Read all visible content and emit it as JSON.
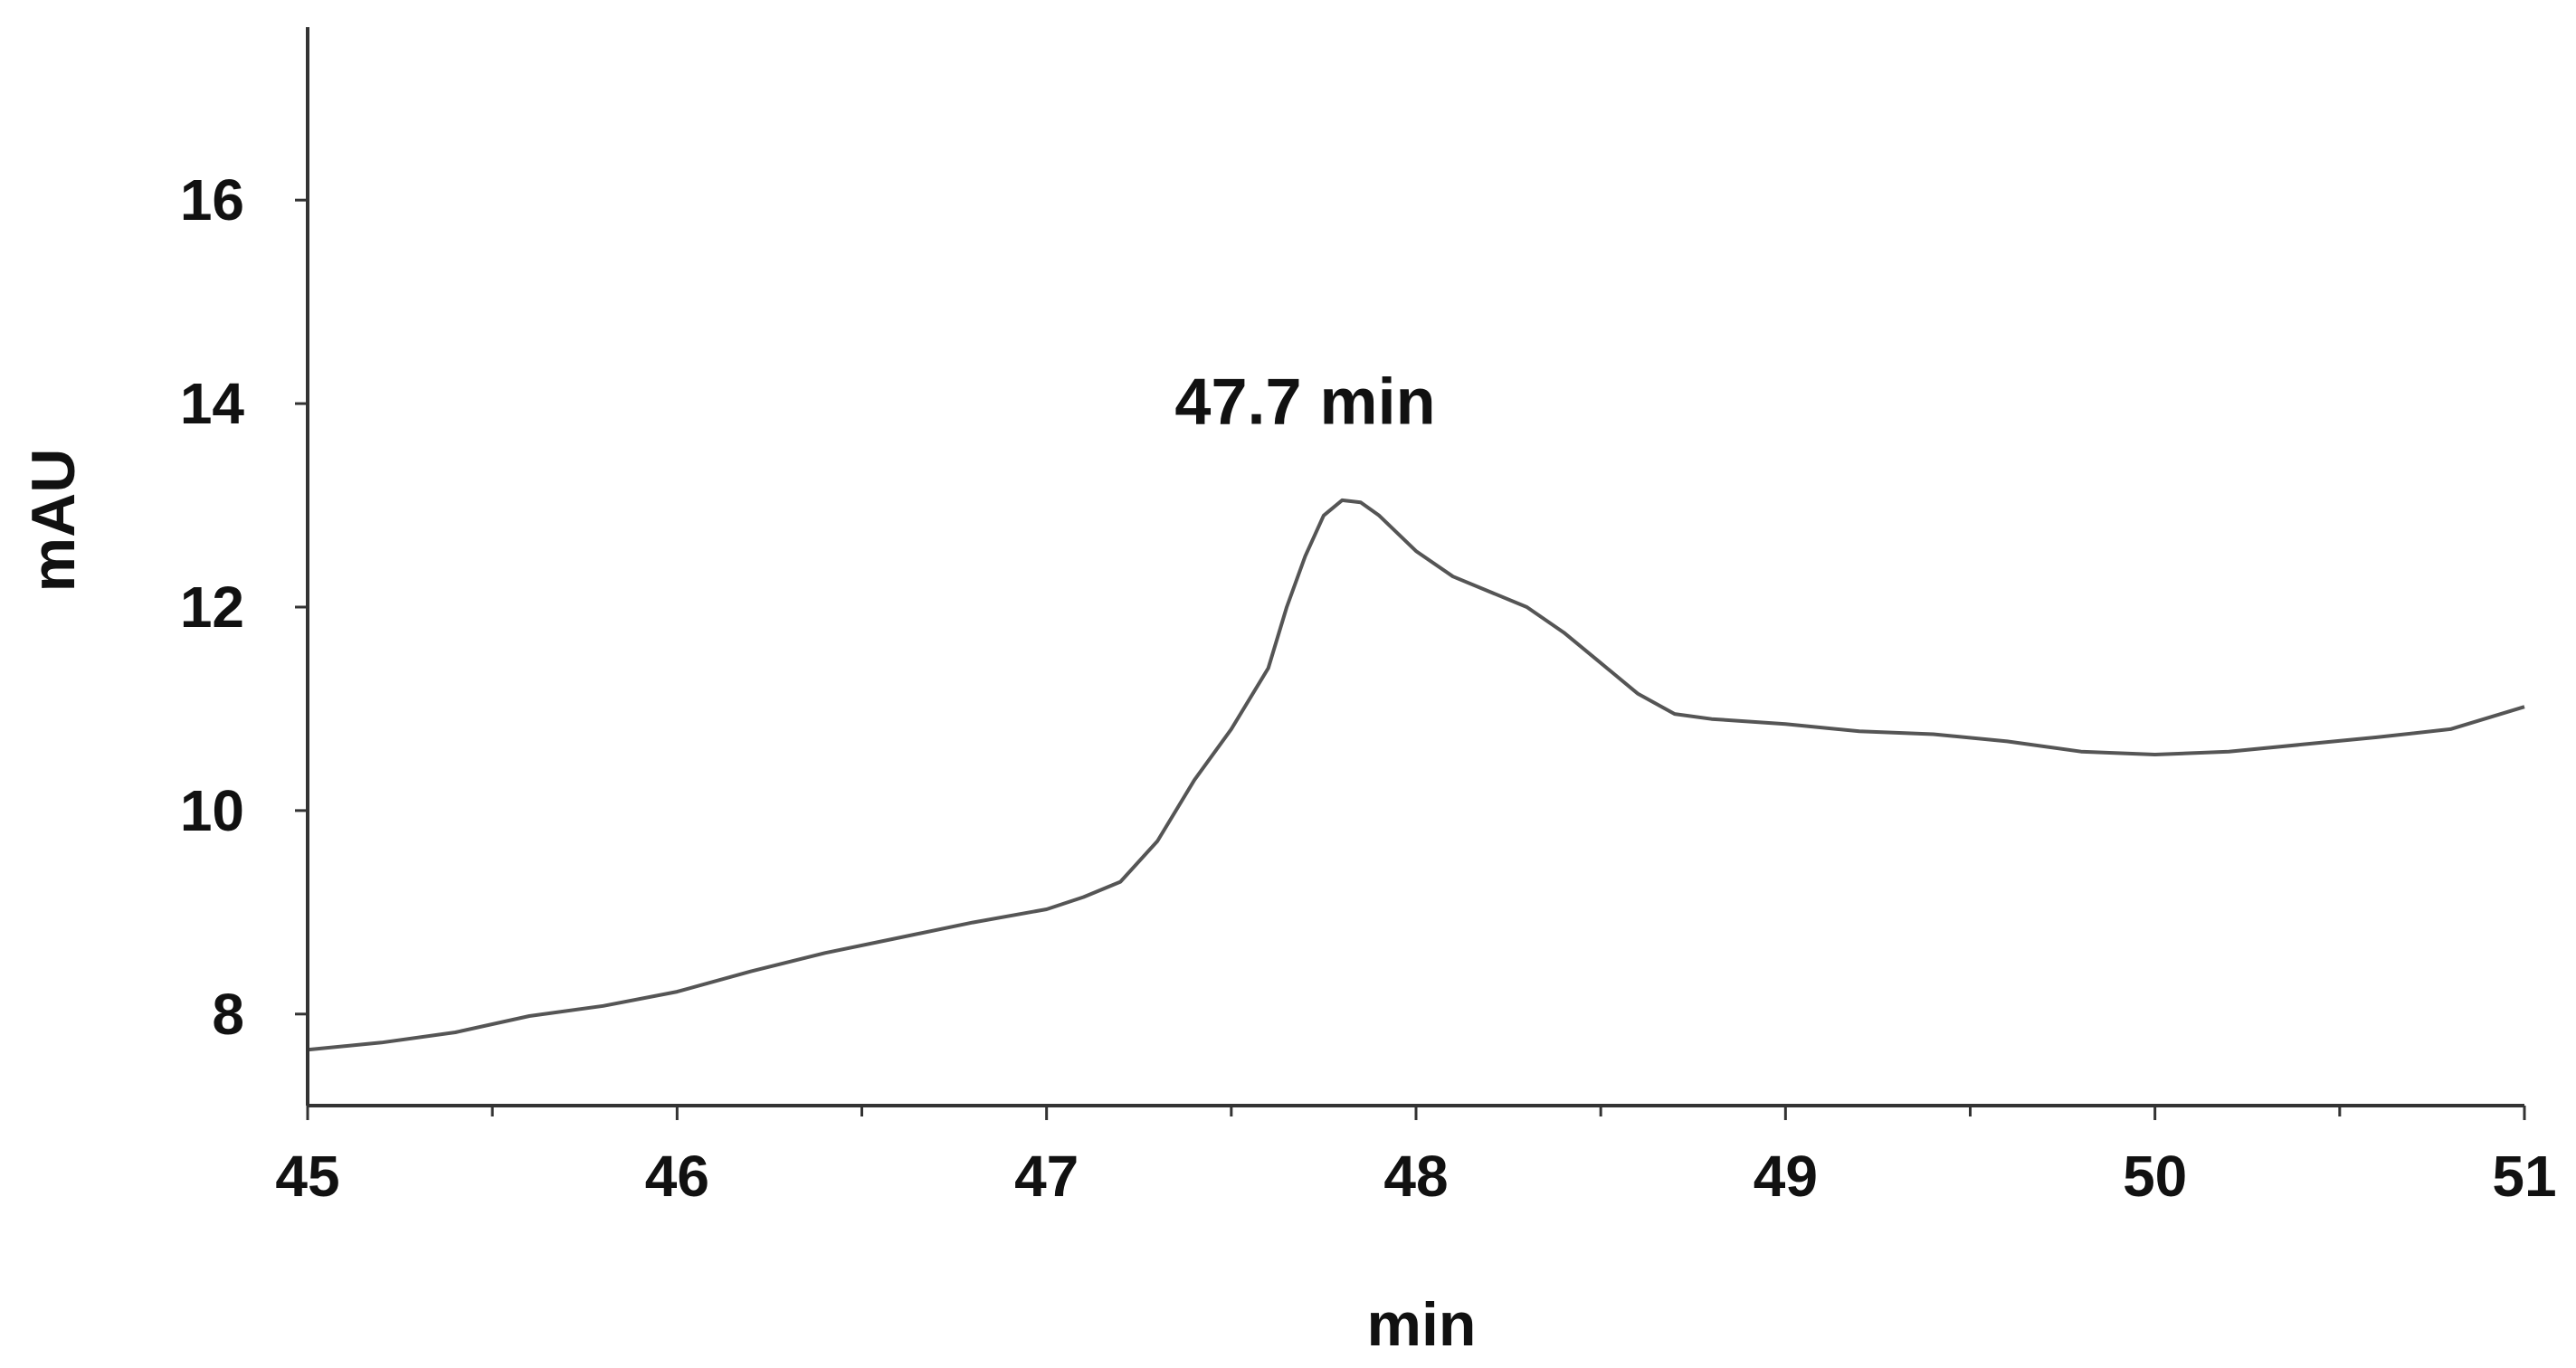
{
  "chart_data": {
    "type": "line",
    "title": "",
    "xlabel": "min",
    "ylabel": "mAU",
    "xlim": [
      45,
      51
    ],
    "ylim": [
      7.1,
      17.7
    ],
    "x_ticks": [
      45,
      46,
      47,
      48,
      49,
      50,
      51
    ],
    "y_ticks": [
      8,
      10,
      12,
      14,
      16
    ],
    "grid": false,
    "annotations": [
      {
        "text": "47.7 min",
        "x": 47.7,
        "y": 13.8
      }
    ],
    "series": [
      {
        "color": "#555555",
        "x": [
          45.0,
          45.2,
          45.4,
          45.6,
          45.8,
          46.0,
          46.2,
          46.4,
          46.6,
          46.8,
          47.0,
          47.1,
          47.2,
          47.3,
          47.4,
          47.5,
          47.6,
          47.65,
          47.7,
          47.75,
          47.8,
          47.85,
          47.9,
          48.0,
          48.1,
          48.2,
          48.3,
          48.4,
          48.5,
          48.6,
          48.7,
          48.8,
          49.0,
          49.2,
          49.4,
          49.6,
          49.8,
          50.0,
          50.2,
          50.4,
          50.6,
          50.8,
          51.0
        ],
        "y": [
          7.65,
          7.72,
          7.82,
          7.98,
          8.08,
          8.22,
          8.42,
          8.6,
          8.75,
          8.9,
          9.03,
          9.15,
          9.3,
          9.7,
          10.3,
          10.8,
          11.4,
          12.0,
          12.5,
          12.9,
          13.05,
          13.03,
          12.9,
          12.55,
          12.3,
          12.15,
          12.0,
          11.75,
          11.45,
          11.15,
          10.95,
          10.9,
          10.85,
          10.78,
          10.75,
          10.68,
          10.58,
          10.55,
          10.58,
          10.65,
          10.72,
          10.8,
          11.02
        ]
      }
    ]
  }
}
